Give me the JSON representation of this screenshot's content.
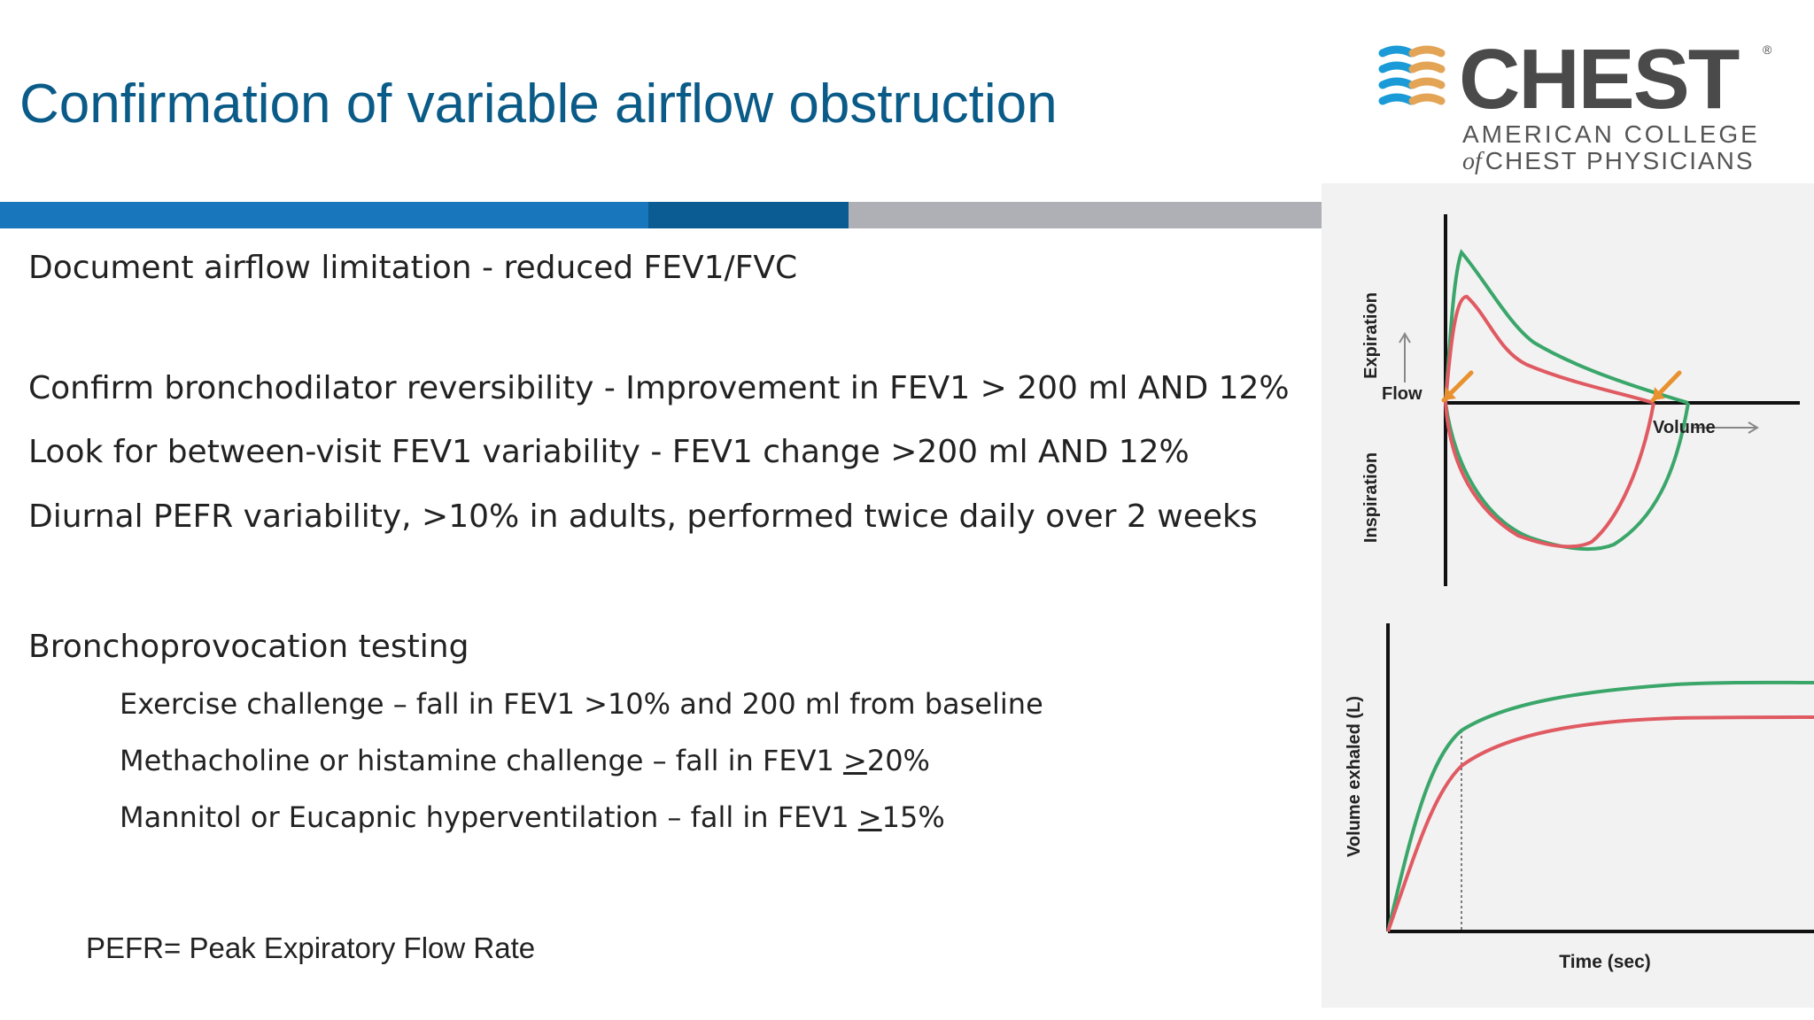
{
  "slide": {
    "title": "Confirmation of variable airflow obstruction"
  },
  "logo": {
    "wordmark": "CHEST",
    "registered_mark": "®",
    "line1": "AMERICAN COLLEGE",
    "line2_of": "of",
    "line2": "CHEST PHYSICIANS",
    "colors": {
      "blue": "#1a9ad6",
      "orange": "#e3a456",
      "gray": "#4a4a4a"
    }
  },
  "content": {
    "line1": "Document airflow limitation - reduced FEV1/FVC",
    "line2": "Confirm bronchodilator reversibility - Improvement in FEV1 > 200 ml AND 12%",
    "line3": "Look for between-visit FEV1 variability - FEV1 change >200 ml AND 12%",
    "line4": "Diurnal PEFR variability, >10% in adults, performed twice daily over 2 weeks",
    "line5": "Bronchoprovocation testing",
    "sub1": "Exercise challenge – fall in FEV1 >10% and 200 ml from baseline",
    "sub2_prefix": "Methacholine or histamine challenge – fall in FEV1 ",
    "sub2_underlined": ">",
    "sub2_suffix": "20%",
    "sub3_prefix": "Mannitol or Eucapnic hyperventilation – fall in FEV1 ",
    "sub3_underlined": ">",
    "sub3_suffix": "15%",
    "footnote": "PEFR= Peak Expiratory Flow Rate"
  },
  "colors": {
    "title": "#0a5b88",
    "band_blue": "#1876bd",
    "band_dark_blue": "#0b5c92",
    "band_gray": "#aeb0b5",
    "curve_green": "#3aa66a",
    "curve_red": "#e05a62",
    "arrow_orange": "#e8912e"
  },
  "figure": {
    "flow_volume": {
      "label_expiration": "Expiration",
      "label_flow": "Flow",
      "label_inspiration": "Inspiration",
      "label_volume": "Volume"
    },
    "volume_time": {
      "ylabel": "Volume exhaled (L)",
      "xlabel": "Time (sec)"
    }
  }
}
